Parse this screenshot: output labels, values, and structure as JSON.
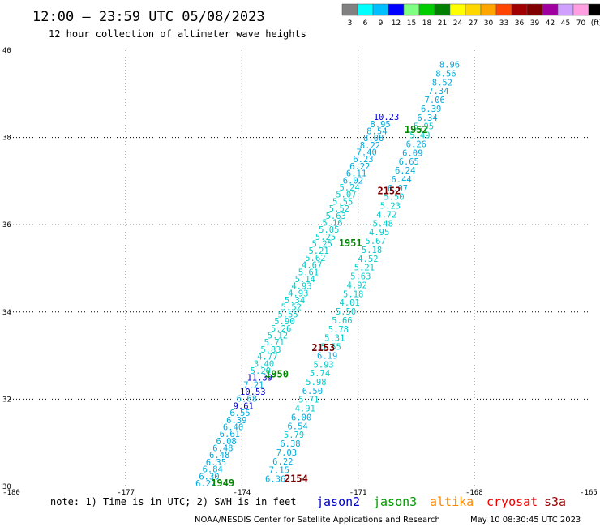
{
  "title": "12:00 – 23:59 UTC 05/08/2023",
  "subtitle": "12 hour collection of altimeter wave heights",
  "note": "note:  1) Time is in UTC;  2) SWH is in feet",
  "credit_left": "NOAA/NESDIS Center for Satellite Applications and Research",
  "credit_right": "May 10 08:30:45 UTC 2023",
  "legend": {
    "labels": [
      "3",
      "6",
      "9",
      "12",
      "15",
      "18",
      "21",
      "24",
      "27",
      "30",
      "33",
      "36",
      "39",
      "42",
      "45",
      "70",
      "(ft)"
    ],
    "colors": [
      "#808080",
      "#00ffff",
      "#00bfff",
      "#0000ff",
      "#80ff80",
      "#00cd00",
      "#008000",
      "#ffff00",
      "#ffd700",
      "#ffa500",
      "#ff4500",
      "#a00000",
      "#800000",
      "#a000a0",
      "#d0a0ff",
      "#ff9ee0",
      "#000000"
    ]
  },
  "satellites": [
    {
      "name": "jason2",
      "color": "#0000cc"
    },
    {
      "name": "jason3",
      "color": "#009900"
    },
    {
      "name": "altika",
      "color": "#ff8800"
    },
    {
      "name": "cryosat",
      "color": "#ee0000"
    },
    {
      "name": "s3a",
      "color": "#990000"
    }
  ],
  "chart_data": {
    "type": "scatter",
    "title": "12:00 – 23:59 UTC 05/08/2023",
    "subtitle": "12 hour collection of altimeter wave heights",
    "x_ticks": [
      "-180",
      "-177",
      "-174",
      "-171",
      "-168",
      "-165"
    ],
    "y_ticks": [
      "40",
      "38",
      "36",
      "34",
      "32",
      "30"
    ],
    "xlim": [
      -180,
      -165
    ],
    "ylim": [
      30,
      40
    ],
    "grid": true,
    "units": "ft",
    "time_labels": [
      {
        "text": "1952",
        "lon": -169.8,
        "lat": 38.1,
        "color": "#008800"
      },
      {
        "text": "2152",
        "lon": -170.5,
        "lat": 36.7,
        "color": "#7a0000"
      },
      {
        "text": "1951",
        "lon": -171.5,
        "lat": 35.5,
        "color": "#008800"
      },
      {
        "text": "2153",
        "lon": -172.2,
        "lat": 33.1,
        "color": "#7a0000"
      },
      {
        "text": "1950",
        "lon": -173.4,
        "lat": 32.5,
        "color": "#008800"
      },
      {
        "text": "2154",
        "lon": -172.9,
        "lat": 30.1,
        "color": "#7a0000"
      },
      {
        "text": "1949",
        "lon": -174.8,
        "lat": 30.0,
        "color": "#008800"
      }
    ],
    "series": [
      {
        "name": "jason3",
        "start": [
          -175.2,
          30.0
        ],
        "end": [
          -170.6,
          38.4
        ],
        "values": [
          "6.22",
          "6.30",
          "6.84",
          "6.35",
          "6.48",
          "6.48",
          "6.08",
          "6.61",
          "6.40",
          "6.39",
          "6.55",
          "9.61",
          "6.68",
          "10.53",
          "7.21",
          "11.39",
          "5.20",
          "3.40",
          "4.77",
          "5.83",
          "5.71",
          "5.12",
          "5.26",
          "5.90",
          "5.55",
          "5.52",
          "5.34",
          "4.93",
          "4.93",
          "5.14",
          "5.61",
          "4.67",
          "5.62",
          "5.21",
          "5.25",
          "5.25",
          "5.05",
          "5.16",
          "5.63",
          "5.52",
          "5.55",
          "5.07",
          "5.24",
          "6.02",
          "6.11",
          "6.22",
          "6.23",
          "7.40",
          "8.22",
          "8.08",
          "8.54",
          "8.95",
          "10.23"
        ]
      },
      {
        "name": "s3a",
        "start": [
          -173.4,
          30.1
        ],
        "end": [
          -168.9,
          39.6
        ],
        "values": [
          "6.36",
          "7.15",
          "6.22",
          "7.03",
          "6.38",
          "5.79",
          "6.54",
          "6.00",
          "4.91",
          "5.71",
          "6.50",
          "5.98",
          "5.74",
          "5.93",
          "6.19",
          "5.55",
          "5.31",
          "5.78",
          "5.66",
          "5.50",
          "4.01",
          "5.18",
          "4.92",
          "5.63",
          "5.21",
          "4.52",
          "5.18",
          "5.67",
          "4.95",
          "5.48",
          "4.72",
          "5.23",
          "5.50",
          "6.07",
          "6.44",
          "6.24",
          "6.65",
          "6.09",
          "6.26",
          "5.49",
          "5.95",
          "6.34",
          "6.39",
          "7.06",
          "7.34",
          "8.52",
          "8.56",
          "8.96"
        ]
      }
    ]
  }
}
